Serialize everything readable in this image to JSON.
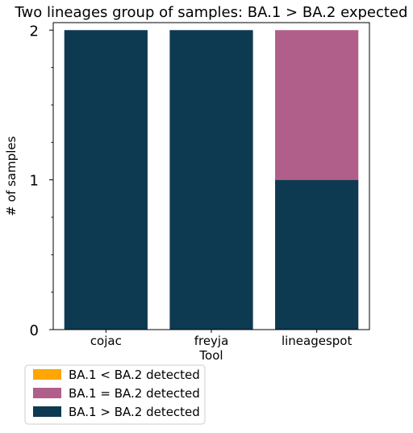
{
  "chart_data": {
    "type": "bar",
    "stacked": true,
    "title": "Two lineages group of samples: BA.1 > BA.2 expected",
    "xlabel": "Tool",
    "ylabel": "# of samples",
    "categories": [
      "cojac",
      "freyja",
      "lineagespot"
    ],
    "ylim": [
      0,
      2.05
    ],
    "yticks": [
      0,
      1,
      2
    ],
    "yticks_minor": [
      0.25,
      0.5,
      0.75,
      1.25,
      1.5,
      1.75
    ],
    "grid": false,
    "legend_position": "bottom-left, below plot",
    "series": [
      {
        "name": "BA.1 < BA.2 detected",
        "color": "#ffa600",
        "values": [
          0,
          0,
          0
        ]
      },
      {
        "name": "BA.1 = BA.2 detected",
        "color": "#b05f8b",
        "values": [
          0,
          0,
          1
        ]
      },
      {
        "name": "BA.1 > BA.2 detected",
        "color": "#0d3a50",
        "values": [
          2,
          2,
          1
        ]
      }
    ],
    "stack_order": [
      2,
      1,
      0
    ],
    "legend_order": [
      0,
      1,
      2
    ]
  }
}
